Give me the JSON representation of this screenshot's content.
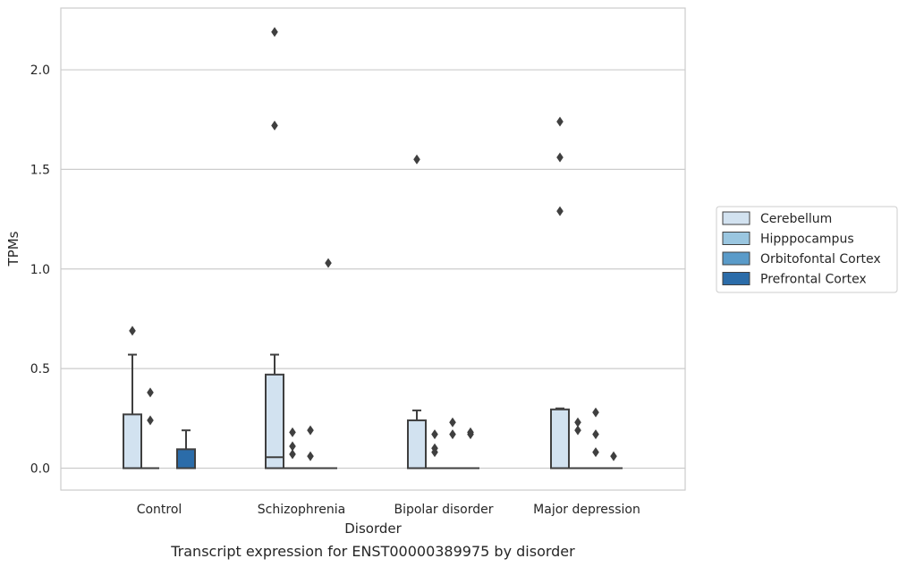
{
  "chart_data": {
    "type": "box",
    "title": "",
    "caption": "Transcript expression for ENST00000389975 by disorder",
    "xlabel": "Disorder",
    "ylabel": "TPMs",
    "ylim": [
      -0.11,
      2.31
    ],
    "yticks": [
      0.0,
      0.5,
      1.0,
      1.5,
      2.0
    ],
    "ytick_labels": [
      "0.0",
      "0.5",
      "1.0",
      "1.5",
      "2.0"
    ],
    "grid": "horizontal",
    "legend_position": "right",
    "categories": [
      "Control",
      "Schizophrenia",
      "Bipolar disorder",
      "Major depression"
    ],
    "series": [
      {
        "name": "Cerebellum",
        "color": "#d2e2f0",
        "boxes": [
          {
            "q1": 0.0,
            "median": 0.0,
            "q3": 0.27,
            "whisker_low": 0.0,
            "whisker_high": 0.57,
            "outliers": [
              0.69
            ]
          },
          {
            "q1": 0.0,
            "median": 0.055,
            "q3": 0.47,
            "whisker_low": 0.0,
            "whisker_high": 0.57,
            "outliers": [
              1.72,
              2.19
            ]
          },
          {
            "q1": 0.0,
            "median": 0.0,
            "q3": 0.24,
            "whisker_low": 0.0,
            "whisker_high": 0.29,
            "outliers": [
              1.55
            ]
          },
          {
            "q1": 0.0,
            "median": 0.0,
            "q3": 0.295,
            "whisker_low": 0.0,
            "whisker_high": 0.3,
            "outliers": [
              1.29,
              1.56,
              1.74
            ]
          }
        ]
      },
      {
        "name": "Hipppocampus",
        "color": "#9ac6e0",
        "boxes": [
          {
            "q1": 0.0,
            "median": 0.0,
            "q3": 0.0,
            "whisker_low": 0.0,
            "whisker_high": 0.0,
            "outliers": [
              0.24,
              0.38
            ]
          },
          {
            "q1": 0.0,
            "median": 0.0,
            "q3": 0.0,
            "whisker_low": 0.0,
            "whisker_high": 0.0,
            "outliers": [
              0.07,
              0.11,
              0.18
            ]
          },
          {
            "q1": 0.0,
            "median": 0.0,
            "q3": 0.0,
            "whisker_low": 0.0,
            "whisker_high": 0.0,
            "outliers": [
              0.08,
              0.1,
              0.17
            ]
          },
          {
            "q1": 0.0,
            "median": 0.0,
            "q3": 0.0,
            "whisker_low": 0.0,
            "whisker_high": 0.0,
            "outliers": [
              0.19,
              0.23
            ]
          }
        ]
      },
      {
        "name": "Orbitofontal Cortex",
        "color": "#5a9bc9",
        "boxes": [
          null,
          {
            "q1": 0.0,
            "median": 0.0,
            "q3": 0.0,
            "whisker_low": 0.0,
            "whisker_high": 0.0,
            "outliers": [
              0.06,
              0.19
            ]
          },
          {
            "q1": 0.0,
            "median": 0.0,
            "q3": 0.0,
            "whisker_low": 0.0,
            "whisker_high": 0.0,
            "outliers": [
              0.17,
              0.23
            ]
          },
          {
            "q1": 0.0,
            "median": 0.0,
            "q3": 0.0,
            "whisker_low": 0.0,
            "whisker_high": 0.0,
            "outliers": [
              0.08,
              0.17,
              0.28
            ]
          }
        ]
      },
      {
        "name": "Prefrontal Cortex",
        "color": "#2b6ca9",
        "boxes": [
          {
            "q1": 0.0,
            "median": 0.0,
            "q3": 0.095,
            "whisker_low": 0.0,
            "whisker_high": 0.19,
            "outliers": []
          },
          {
            "q1": 0.0,
            "median": 0.0,
            "q3": 0.0,
            "whisker_low": 0.0,
            "whisker_high": 0.0,
            "outliers": [
              1.03
            ]
          },
          {
            "q1": 0.0,
            "median": 0.0,
            "q3": 0.0,
            "whisker_low": 0.0,
            "whisker_high": 0.0,
            "outliers": [
              0.17,
              0.18
            ]
          },
          {
            "q1": 0.0,
            "median": 0.0,
            "q3": 0.0,
            "whisker_low": 0.0,
            "whisker_high": 0.0,
            "outliers": [
              0.06
            ]
          }
        ]
      }
    ]
  }
}
